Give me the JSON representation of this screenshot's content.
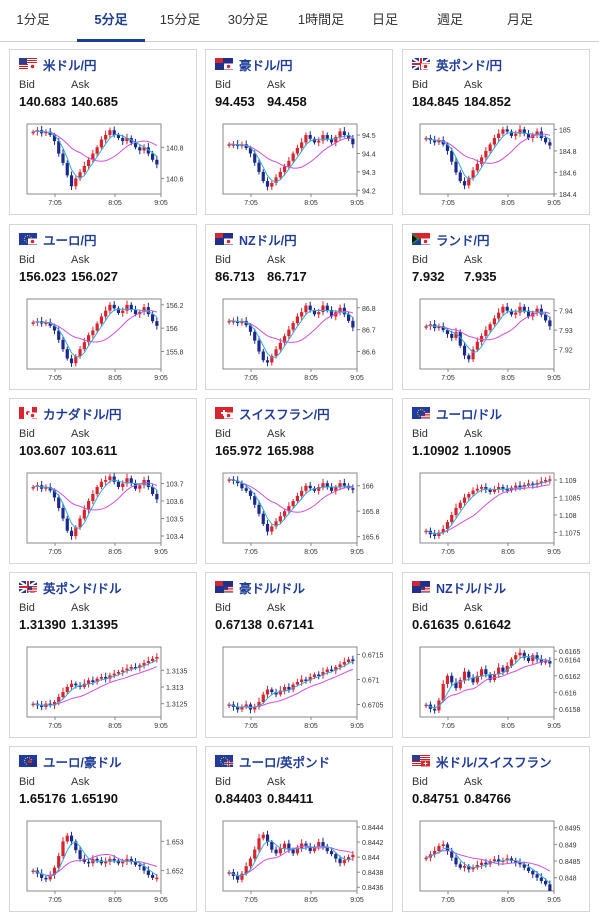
{
  "tabs": [
    {
      "label": "1分足",
      "active": false
    },
    {
      "label": "5分足",
      "active": true
    },
    {
      "label": "15分足",
      "active": false
    },
    {
      "label": "30分足",
      "active": false
    },
    {
      "label": "1時間足",
      "active": false
    },
    {
      "label": "日足",
      "active": false
    },
    {
      "label": "週足",
      "active": false
    },
    {
      "label": "月足",
      "active": false
    }
  ],
  "labels": {
    "bid": "Bid",
    "ask": "Ask"
  },
  "colors": {
    "accent": "#1a3f8c",
    "up": "#d9232d",
    "down": "#1a2a8c",
    "ma_long": "#d050d8",
    "ma_short": "#33a9e0"
  },
  "cards": [
    {
      "pair": "米ドル/円",
      "flag": "us-jp",
      "bid": "140.683",
      "ask": "140.685",
      "chart_data": {
        "type": "candlestick",
        "x_ticks": [
          "7:05",
          "8:05",
          "9:05"
        ],
        "y_ticks": [
          "140.8",
          "140.6"
        ],
        "ylim": [
          140.5,
          140.95
        ],
        "closes": [
          140.9,
          140.91,
          140.89,
          140.9,
          140.88,
          140.84,
          140.76,
          140.7,
          140.62,
          140.55,
          140.6,
          140.64,
          140.68,
          140.72,
          140.76,
          140.8,
          140.85,
          140.88,
          140.91,
          140.88,
          140.86,
          140.84,
          140.86,
          140.83,
          140.8,
          140.78,
          140.8,
          140.76,
          140.72,
          140.69
        ]
      }
    },
    {
      "pair": "豪ドル/円",
      "flag": "au-jp",
      "bid": "94.453",
      "ask": "94.458",
      "chart_data": {
        "type": "candlestick",
        "x_ticks": [
          "7:05",
          "8:05",
          "9:05"
        ],
        "y_ticks": [
          "94.5",
          "94.4",
          "94.3",
          "94.2"
        ],
        "ylim": [
          94.18,
          94.56
        ],
        "closes": [
          94.45,
          94.45,
          94.44,
          94.45,
          94.43,
          94.4,
          94.35,
          94.3,
          94.25,
          94.22,
          94.24,
          94.27,
          94.3,
          94.33,
          94.36,
          94.4,
          94.43,
          94.46,
          94.5,
          94.48,
          94.46,
          94.47,
          94.5,
          94.48,
          94.46,
          94.49,
          94.52,
          94.5,
          94.48,
          94.45
        ]
      }
    },
    {
      "pair": "英ポンド/円",
      "flag": "gb-jp",
      "bid": "184.845",
      "ask": "184.852",
      "chart_data": {
        "type": "candlestick",
        "x_ticks": [
          "7:05",
          "8:05",
          "9:05"
        ],
        "y_ticks": [
          "185",
          "184.8",
          "184.6",
          "184.4"
        ],
        "ylim": [
          184.4,
          185.05
        ],
        "closes": [
          184.92,
          184.9,
          184.88,
          184.9,
          184.86,
          184.8,
          184.7,
          184.6,
          184.52,
          184.48,
          184.55,
          184.62,
          184.68,
          184.74,
          184.8,
          184.86,
          184.92,
          184.96,
          185.0,
          184.98,
          184.94,
          184.96,
          185.0,
          184.96,
          184.92,
          184.95,
          184.98,
          184.92,
          184.88,
          184.85
        ]
      }
    },
    {
      "pair": "ユーロ/円",
      "flag": "eu-jp",
      "bid": "156.023",
      "ask": "156.027",
      "chart_data": {
        "type": "candlestick",
        "x_ticks": [
          "7:05",
          "8:05",
          "9:05"
        ],
        "y_ticks": [
          "156.2",
          "156",
          "155.8"
        ],
        "ylim": [
          155.65,
          156.25
        ],
        "closes": [
          156.05,
          156.06,
          156.04,
          156.05,
          156.02,
          155.98,
          155.9,
          155.82,
          155.74,
          155.7,
          155.76,
          155.82,
          155.88,
          155.94,
          155.98,
          156.04,
          156.1,
          156.15,
          156.2,
          156.17,
          156.13,
          156.15,
          156.2,
          156.16,
          156.12,
          156.14,
          156.18,
          156.12,
          156.06,
          156.02
        ]
      }
    },
    {
      "pair": "NZドル/円",
      "flag": "nz-jp",
      "bid": "86.713",
      "ask": "86.717",
      "chart_data": {
        "type": "candlestick",
        "x_ticks": [
          "7:05",
          "8:05",
          "9:05"
        ],
        "y_ticks": [
          "86.8",
          "86.7",
          "86.6"
        ],
        "ylim": [
          86.52,
          86.84
        ],
        "closes": [
          86.74,
          86.74,
          86.73,
          86.74,
          86.72,
          86.69,
          86.65,
          86.6,
          86.56,
          86.55,
          86.58,
          86.61,
          86.64,
          86.67,
          86.7,
          86.73,
          86.76,
          86.78,
          86.81,
          86.79,
          86.77,
          86.78,
          86.81,
          86.79,
          86.76,
          86.78,
          86.8,
          86.77,
          86.74,
          86.71
        ]
      }
    },
    {
      "pair": "ランド/円",
      "flag": "za-jp",
      "bid": "7.932",
      "ask": "7.935",
      "chart_data": {
        "type": "candlestick",
        "x_ticks": [
          "7:05",
          "8:05",
          "9:05"
        ],
        "y_ticks": [
          "7.94",
          "7.93",
          "7.92"
        ],
        "ylim": [
          7.91,
          7.946
        ],
        "closes": [
          7.932,
          7.933,
          7.931,
          7.932,
          7.93,
          7.928,
          7.926,
          7.929,
          7.922,
          7.917,
          7.915,
          7.92,
          7.924,
          7.927,
          7.93,
          7.933,
          7.936,
          7.939,
          7.942,
          7.94,
          7.938,
          7.939,
          7.942,
          7.94,
          7.937,
          7.939,
          7.941,
          7.938,
          7.935,
          7.932
        ]
      }
    },
    {
      "pair": "カナダドル/円",
      "flag": "ca-jp",
      "bid": "103.607",
      "ask": "103.611",
      "chart_data": {
        "type": "candlestick",
        "x_ticks": [
          "7:05",
          "8:05",
          "9:05"
        ],
        "y_ticks": [
          "103.7",
          "103.6",
          "103.5",
          "103.4"
        ],
        "ylim": [
          103.36,
          103.76
        ],
        "closes": [
          103.68,
          103.69,
          103.67,
          103.68,
          103.66,
          103.62,
          103.56,
          103.5,
          103.43,
          103.4,
          103.45,
          103.5,
          103.55,
          103.6,
          103.64,
          103.68,
          103.71,
          103.72,
          103.74,
          103.71,
          103.68,
          103.7,
          103.73,
          103.7,
          103.67,
          103.69,
          103.72,
          103.68,
          103.64,
          103.61
        ]
      }
    },
    {
      "pair": "スイスフラン/円",
      "flag": "ch-jp",
      "bid": "165.972",
      "ask": "165.988",
      "chart_data": {
        "type": "candlestick",
        "x_ticks": [
          "7:05",
          "8:05",
          "9:05"
        ],
        "y_ticks": [
          "166",
          "165.8",
          "165.6"
        ],
        "ylim": [
          165.55,
          166.1
        ],
        "closes": [
          166.05,
          166.04,
          166.02,
          165.98,
          165.96,
          165.92,
          165.85,
          165.78,
          165.7,
          165.64,
          165.68,
          165.72,
          165.76,
          165.8,
          165.84,
          165.88,
          165.92,
          165.96,
          166.0,
          165.98,
          165.96,
          165.99,
          166.02,
          165.99,
          165.96,
          165.99,
          166.02,
          166.0,
          165.98,
          165.97
        ]
      }
    },
    {
      "pair": "ユーロ/ドル",
      "flag": "eu-us",
      "bid": "1.10902",
      "ask": "1.10905",
      "chart_data": {
        "type": "candlestick",
        "x_ticks": [
          "7:05",
          "8:05",
          "9:05"
        ],
        "y_ticks": [
          "1.109",
          "1.1085",
          "1.108",
          "1.1075"
        ],
        "ylim": [
          1.1072,
          1.1092
        ],
        "closes": [
          1.10755,
          1.10745,
          1.1074,
          1.1075,
          1.1076,
          1.1078,
          1.108,
          1.1082,
          1.10835,
          1.1085,
          1.1086,
          1.1087,
          1.10875,
          1.1088,
          1.10872,
          1.10866,
          1.10874,
          1.1088,
          1.10875,
          1.1087,
          1.10878,
          1.10884,
          1.1088,
          1.10886,
          1.1089,
          1.10886,
          1.10892,
          1.10896,
          1.109,
          1.10902
        ]
      }
    },
    {
      "pair": "英ポンド/ドル",
      "flag": "gb-us",
      "bid": "1.31390",
      "ask": "1.31395",
      "chart_data": {
        "type": "candlestick",
        "x_ticks": [
          "7:05",
          "8:05",
          "9:05"
        ],
        "y_ticks": [
          "1.3135",
          "1.313",
          "1.3125"
        ],
        "ylim": [
          1.3121,
          1.3142
        ],
        "closes": [
          1.3125,
          1.31245,
          1.3124,
          1.3125,
          1.31245,
          1.31255,
          1.3127,
          1.31285,
          1.313,
          1.3131,
          1.31305,
          1.313,
          1.3131,
          1.3132,
          1.31315,
          1.31325,
          1.3133,
          1.31325,
          1.31335,
          1.3134,
          1.31345,
          1.3135,
          1.31355,
          1.3136,
          1.31358,
          1.31365,
          1.31372,
          1.31378,
          1.31385,
          1.3139
        ]
      }
    },
    {
      "pair": "豪ドル/ドル",
      "flag": "au-us",
      "bid": "0.67138",
      "ask": "0.67141",
      "chart_data": {
        "type": "candlestick",
        "x_ticks": [
          "7:05",
          "8:05",
          "9:05"
        ],
        "y_ticks": [
          "0.6715",
          "0.671",
          "0.6705"
        ],
        "ylim": [
          0.67025,
          0.67165
        ],
        "closes": [
          0.6705,
          0.67045,
          0.6704,
          0.67045,
          0.6705,
          0.6704,
          0.67045,
          0.67055,
          0.6707,
          0.6708,
          0.67075,
          0.6707,
          0.67078,
          0.67085,
          0.6708,
          0.6709,
          0.67095,
          0.671,
          0.67098,
          0.67105,
          0.6711,
          0.67108,
          0.67115,
          0.6712,
          0.67118,
          0.67125,
          0.6713,
          0.67135,
          0.6714,
          0.67138
        ]
      }
    },
    {
      "pair": "NZドル/ドル",
      "flag": "nz-us",
      "bid": "0.61635",
      "ask": "0.61642",
      "chart_data": {
        "type": "candlestick",
        "x_ticks": [
          "7:05",
          "8:05",
          "9:05"
        ],
        "y_ticks": [
          "0.6165",
          "0.6164",
          "0.6162",
          "0.616",
          "0.6158"
        ],
        "ylim": [
          0.6157,
          0.61655
        ],
        "closes": [
          0.61585,
          0.6158,
          0.61578,
          0.6159,
          0.6161,
          0.6162,
          0.61612,
          0.61605,
          0.61615,
          0.61625,
          0.61618,
          0.61612,
          0.6162,
          0.61628,
          0.61622,
          0.61615,
          0.61622,
          0.6163,
          0.61625,
          0.61632,
          0.6164,
          0.61645,
          0.61648,
          0.61642,
          0.61638,
          0.61645,
          0.6164,
          0.61636,
          0.61638,
          0.61635
        ]
      }
    },
    {
      "pair": "ユーロ/豪ドル",
      "flag": "eu-au",
      "bid": "1.65176",
      "ask": "1.65190",
      "chart_data": {
        "type": "candlestick",
        "x_ticks": [
          "7:05",
          "8:05",
          "9:05"
        ],
        "y_ticks": [
          "1.653",
          "1.652"
        ],
        "ylim": [
          1.6513,
          1.6537
        ],
        "closes": [
          1.652,
          1.6519,
          1.65175,
          1.6517,
          1.65185,
          1.6521,
          1.6525,
          1.653,
          1.6532,
          1.653,
          1.6527,
          1.6524,
          1.6523,
          1.65225,
          1.6524,
          1.65235,
          1.65225,
          1.6523,
          1.6524,
          1.65235,
          1.65225,
          1.6523,
          1.6524,
          1.6523,
          1.6522,
          1.65215,
          1.652,
          1.65185,
          1.65175,
          1.65176
        ]
      }
    },
    {
      "pair": "ユーロ/英ポンド",
      "flag": "eu-gb",
      "bid": "0.84403",
      "ask": "0.84411",
      "chart_data": {
        "type": "candlestick",
        "x_ticks": [
          "7:05",
          "8:05",
          "9:05"
        ],
        "y_ticks": [
          "0.8444",
          "0.8442",
          "0.844",
          "0.8438",
          "0.8436"
        ],
        "ylim": [
          0.84355,
          0.84448
        ],
        "closes": [
          0.8438,
          0.84375,
          0.8437,
          0.84378,
          0.84388,
          0.84398,
          0.8441,
          0.84425,
          0.8443,
          0.8442,
          0.8441,
          0.84405,
          0.84412,
          0.84418,
          0.8441,
          0.84405,
          0.84412,
          0.84418,
          0.84414,
          0.84408,
          0.84414,
          0.8442,
          0.84414,
          0.84408,
          0.84404,
          0.84398,
          0.84392,
          0.84396,
          0.844,
          0.84403
        ]
      }
    },
    {
      "pair": "米ドル/スイスフラン",
      "flag": "us-ch",
      "bid": "0.84751",
      "ask": "0.84766",
      "chart_data": {
        "type": "candlestick",
        "x_ticks": [
          "7:05",
          "8:05",
          "9:05"
        ],
        "y_ticks": [
          "0.8495",
          "0.849",
          "0.8485",
          "0.848"
        ],
        "ylim": [
          0.8476,
          0.8497
        ],
        "closes": [
          0.8486,
          0.8487,
          0.8488,
          0.84895,
          0.849,
          0.8488,
          0.8486,
          0.8484,
          0.8483,
          0.84835,
          0.84825,
          0.8483,
          0.84838,
          0.84845,
          0.8484,
          0.8485,
          0.84855,
          0.84848,
          0.84852,
          0.84858,
          0.8485,
          0.84845,
          0.8484,
          0.8483,
          0.8482,
          0.8481,
          0.848,
          0.8479,
          0.8478,
          0.8476
        ]
      }
    }
  ]
}
